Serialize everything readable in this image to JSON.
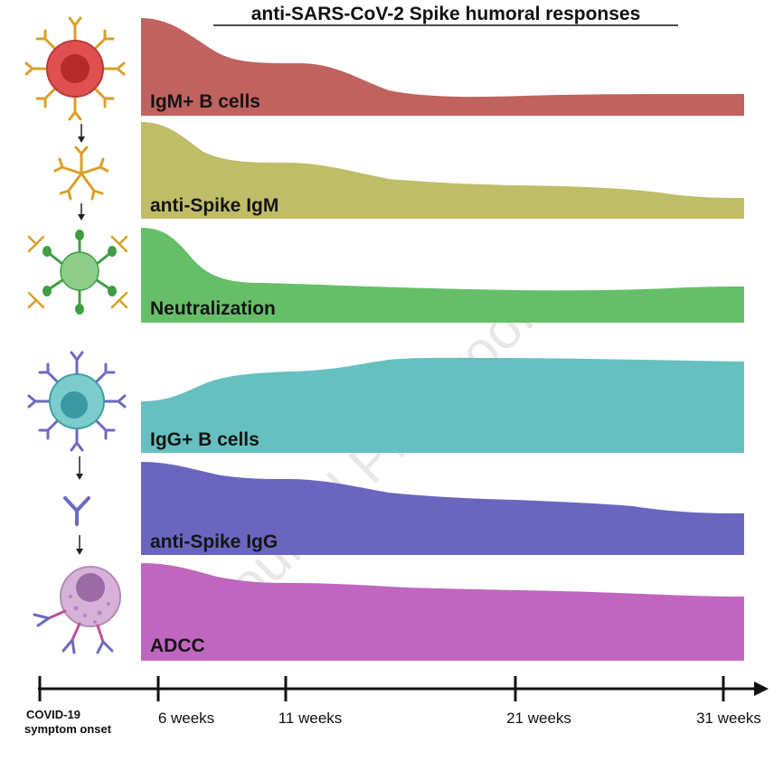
{
  "title": "anti-SARS-CoV-2 Spike humoral responses",
  "watermark": "Journal Pre-proof",
  "timeline": {
    "onset_label_line1": "COVID-19",
    "onset_label_line2": "symptom onset",
    "ticks": [
      "6 weeks",
      "11 weeks",
      "21 weeks",
      "31 weeks"
    ]
  },
  "bands": [
    {
      "label": "IgM+ B cells",
      "color": "#c0625f",
      "icon": "igm-b-cell-icon"
    },
    {
      "label": "anti-Spike IgM",
      "color": "#c0bd68",
      "icon": "igm-pentamer-icon"
    },
    {
      "label": "Neutralization",
      "color": "#66bf68",
      "icon": "neutralized-virion-icon"
    },
    {
      "label": "IgG+ B cells",
      "color": "#66c0c0",
      "icon": "igg-b-cell-icon"
    },
    {
      "label": "anti-Spike IgG",
      "color": "#6a66c0",
      "icon": "igg-antibody-icon"
    },
    {
      "label": "ADCC",
      "color": "#c066c0",
      "icon": "adcc-infected-cell-icon"
    }
  ]
}
